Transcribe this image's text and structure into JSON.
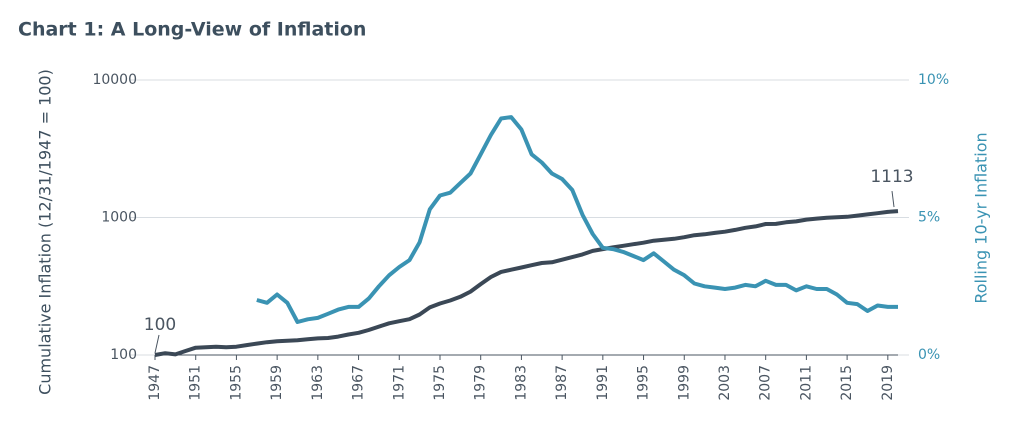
{
  "chart_data": {
    "type": "line",
    "title": "Chart 1:  A Long-View of Inflation",
    "y_label": "Cumulative Inflation (12/31/1947 = 100)",
    "y2_label": "Rolling 10-yr Inflation",
    "x": [
      1947,
      1948,
      1949,
      1950,
      1951,
      1952,
      1953,
      1954,
      1955,
      1956,
      1957,
      1958,
      1959,
      1960,
      1961,
      1962,
      1963,
      1964,
      1965,
      1966,
      1967,
      1968,
      1969,
      1970,
      1971,
      1972,
      1973,
      1974,
      1975,
      1976,
      1977,
      1978,
      1979,
      1980,
      1981,
      1982,
      1983,
      1984,
      1985,
      1986,
      1987,
      1988,
      1989,
      1990,
      1991,
      1992,
      1993,
      1994,
      1995,
      1996,
      1997,
      1998,
      1999,
      2000,
      2001,
      2002,
      2003,
      2004,
      2005,
      2006,
      2007,
      2008,
      2009,
      2010,
      2011,
      2012,
      2013,
      2014,
      2015,
      2016,
      2017,
      2018,
      2019,
      2020
    ],
    "xlim": [
      1947,
      2020
    ],
    "xticks": [
      1947,
      1951,
      1955,
      1959,
      1963,
      1967,
      1971,
      1975,
      1979,
      1983,
      1987,
      1991,
      1995,
      1999,
      2003,
      2007,
      2011,
      2015,
      2019
    ],
    "ylim": [
      100,
      10000
    ],
    "yticks": [
      100,
      1000,
      10000
    ],
    "log_y": true,
    "y2lim": [
      0,
      10
    ],
    "y2ticks": [
      {
        "value": 0,
        "label": "0%"
      },
      {
        "value": 5,
        "label": "5%"
      },
      {
        "value": 10,
        "label": "10%"
      }
    ],
    "grid": true,
    "series": [
      {
        "name": "Cumulative Inflation",
        "color": "#3b4856",
        "values": [
          100,
          103,
          101,
          107,
          113,
          114,
          115,
          114,
          115,
          118,
          121,
          124,
          126,
          127,
          128,
          130,
          132,
          133,
          136,
          141,
          145,
          152,
          161,
          170,
          176,
          182,
          197,
          222,
          237,
          249,
          265,
          289,
          328,
          369,
          402,
          417,
          433,
          450,
          467,
          472,
          493,
          515,
          539,
          572,
          589,
          606,
          623,
          640,
          656,
          678,
          689,
          700,
          719,
          744,
          755,
          773,
          788,
          813,
          841,
          862,
          897,
          898,
          923,
          937,
          965,
          981,
          996,
          1003,
          1011,
          1032,
          1053,
          1074,
          1098,
          1113
        ]
      },
      {
        "name": "Rolling 10-yr Inflation",
        "color": "#3a93b3",
        "axis": "y2",
        "values": [
          null,
          null,
          null,
          null,
          null,
          null,
          null,
          null,
          null,
          null,
          2.0,
          1.9,
          2.2,
          1.9,
          1.2,
          1.3,
          1.35,
          1.5,
          1.65,
          1.75,
          1.75,
          2.05,
          2.5,
          2.9,
          3.2,
          3.45,
          4.1,
          5.3,
          5.8,
          5.9,
          6.25,
          6.6,
          7.3,
          8.0,
          8.6,
          8.65,
          8.2,
          7.3,
          7.0,
          6.6,
          6.4,
          6.0,
          5.1,
          4.4,
          3.9,
          3.85,
          3.75,
          3.6,
          3.45,
          3.7,
          3.4,
          3.1,
          2.9,
          2.6,
          2.5,
          2.45,
          2.4,
          2.45,
          2.55,
          2.5,
          2.7,
          2.55,
          2.55,
          2.35,
          2.5,
          2.4,
          2.4,
          2.2,
          1.9,
          1.85,
          1.6,
          1.8,
          1.75,
          1.75
        ]
      }
    ]
  }
}
